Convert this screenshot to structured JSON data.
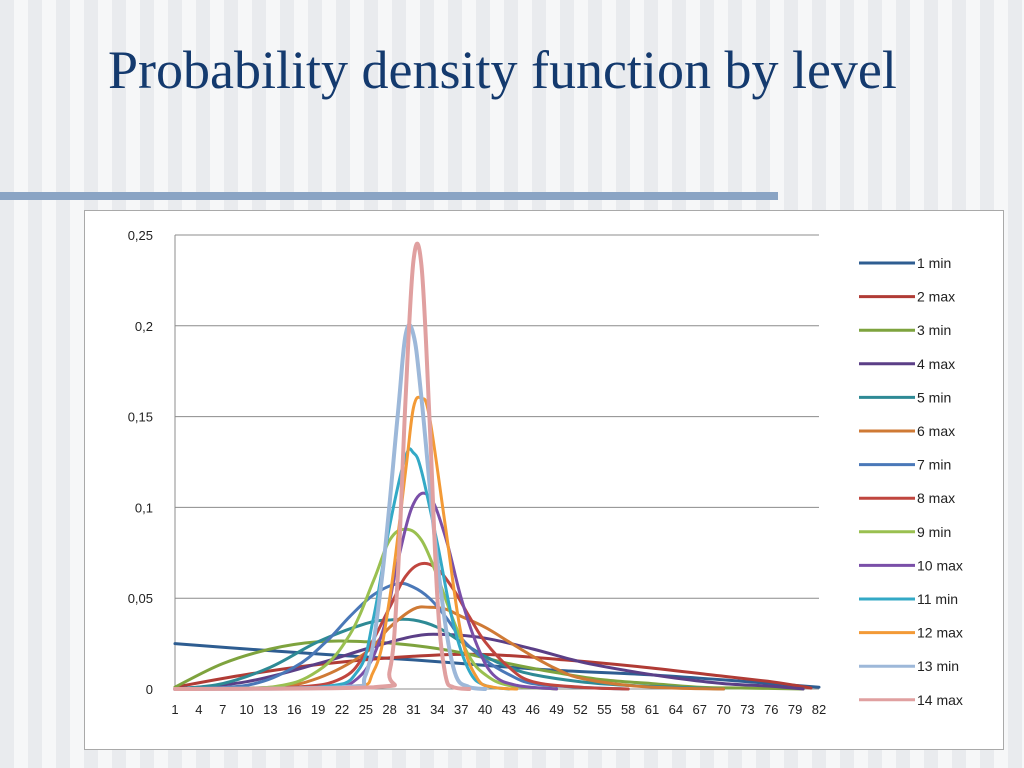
{
  "slide": {
    "title": "Probability density function by level"
  },
  "chart_data": {
    "type": "line",
    "title": "",
    "xlabel": "",
    "ylabel": "",
    "ylim": [
      0,
      0.25
    ],
    "yticks": [
      "0",
      "0,05",
      "0,1",
      "0,15",
      "0,2",
      "0,25"
    ],
    "ytick_values": [
      0,
      0.05,
      0.1,
      0.15,
      0.2,
      0.25
    ],
    "xlim": [
      1,
      82
    ],
    "xticks": [
      1,
      4,
      7,
      10,
      13,
      16,
      19,
      22,
      25,
      28,
      31,
      34,
      37,
      40,
      43,
      46,
      49,
      52,
      55,
      58,
      61,
      64,
      67,
      70,
      73,
      76,
      79,
      82
    ],
    "grid": "horizontal",
    "legend": "right",
    "series": [
      {
        "name": "1 min",
        "color": "#2e5d91",
        "width": 3,
        "points": [
          [
            1,
            0.025
          ],
          [
            10,
            0.022
          ],
          [
            20,
            0.019
          ],
          [
            31,
            0.016
          ],
          [
            40,
            0.013
          ],
          [
            50,
            0.01
          ],
          [
            60,
            0.008
          ],
          [
            70,
            0.005
          ],
          [
            79,
            0.002
          ],
          [
            82,
            0.001
          ]
        ]
      },
      {
        "name": "2 max",
        "color": "#b03b35",
        "width": 3,
        "points": [
          [
            1,
            0.001
          ],
          [
            10,
            0.008
          ],
          [
            20,
            0.014
          ],
          [
            31,
            0.018
          ],
          [
            40,
            0.019
          ],
          [
            50,
            0.016
          ],
          [
            60,
            0.012
          ],
          [
            70,
            0.007
          ],
          [
            76,
            0.004
          ],
          [
            79,
            0.002
          ],
          [
            81,
            0.0005
          ]
        ]
      },
      {
        "name": "3 min",
        "color": "#7ea33e",
        "width": 3,
        "points": [
          [
            1,
            0.001
          ],
          [
            7,
            0.014
          ],
          [
            13,
            0.022
          ],
          [
            19,
            0.026
          ],
          [
            25,
            0.026
          ],
          [
            31,
            0.024
          ],
          [
            37,
            0.02
          ],
          [
            43,
            0.014
          ],
          [
            49,
            0.009
          ],
          [
            55,
            0.005
          ],
          [
            61,
            0.003
          ],
          [
            67,
            0.001
          ],
          [
            73,
            0.0005
          ],
          [
            80,
            0
          ]
        ]
      },
      {
        "name": "4 max",
        "color": "#5b3f87",
        "width": 3,
        "points": [
          [
            1,
            0
          ],
          [
            10,
            0.004
          ],
          [
            19,
            0.014
          ],
          [
            25,
            0.022
          ],
          [
            31,
            0.029
          ],
          [
            35,
            0.03
          ],
          [
            40,
            0.028
          ],
          [
            46,
            0.022
          ],
          [
            52,
            0.015
          ],
          [
            58,
            0.01
          ],
          [
            64,
            0.006
          ],
          [
            70,
            0.003
          ],
          [
            76,
            0.0015
          ],
          [
            80,
            0
          ]
        ]
      },
      {
        "name": "5 min",
        "color": "#2e8a95",
        "width": 3,
        "points": [
          [
            1,
            0
          ],
          [
            7,
            0.003
          ],
          [
            13,
            0.012
          ],
          [
            19,
            0.026
          ],
          [
            25,
            0.036
          ],
          [
            28,
            0.038
          ],
          [
            31,
            0.038
          ],
          [
            34,
            0.034
          ],
          [
            37,
            0.026
          ],
          [
            40,
            0.018
          ],
          [
            43,
            0.012
          ],
          [
            46,
            0.008
          ],
          [
            52,
            0.004
          ],
          [
            58,
            0.002
          ],
          [
            64,
            0.001
          ],
          [
            70,
            0
          ]
        ]
      },
      {
        "name": "6 max",
        "color": "#cf7a35",
        "width": 3,
        "points": [
          [
            1,
            0
          ],
          [
            13,
            0.001
          ],
          [
            19,
            0.006
          ],
          [
            25,
            0.02
          ],
          [
            28,
            0.034
          ],
          [
            31,
            0.044
          ],
          [
            33,
            0.045
          ],
          [
            35,
            0.044
          ],
          [
            37,
            0.04
          ],
          [
            40,
            0.034
          ],
          [
            43,
            0.026
          ],
          [
            46,
            0.018
          ],
          [
            49,
            0.011
          ],
          [
            52,
            0.006
          ],
          [
            58,
            0.002
          ],
          [
            64,
            0.0005
          ],
          [
            70,
            0
          ]
        ]
      },
      {
        "name": "7 min",
        "color": "#4a78b8",
        "width": 3,
        "points": [
          [
            1,
            0
          ],
          [
            10,
            0.002
          ],
          [
            16,
            0.012
          ],
          [
            20,
            0.026
          ],
          [
            23,
            0.04
          ],
          [
            26,
            0.052
          ],
          [
            29,
            0.058
          ],
          [
            31,
            0.056
          ],
          [
            33,
            0.05
          ],
          [
            35,
            0.04
          ],
          [
            37,
            0.028
          ],
          [
            40,
            0.016
          ],
          [
            43,
            0.008
          ],
          [
            46,
            0.003
          ],
          [
            52,
            0.001
          ],
          [
            58,
            0
          ]
        ]
      },
      {
        "name": "8 max",
        "color": "#c0463f",
        "width": 3,
        "points": [
          [
            1,
            0
          ],
          [
            16,
            0.001
          ],
          [
            22,
            0.006
          ],
          [
            25,
            0.02
          ],
          [
            28,
            0.045
          ],
          [
            30,
            0.062
          ],
          [
            32,
            0.069
          ],
          [
            34,
            0.066
          ],
          [
            36,
            0.055
          ],
          [
            38,
            0.04
          ],
          [
            40,
            0.026
          ],
          [
            43,
            0.012
          ],
          [
            46,
            0.004
          ],
          [
            52,
            0.001
          ],
          [
            58,
            0
          ]
        ]
      },
      {
        "name": "9 min",
        "color": "#9ac050",
        "width": 3,
        "points": [
          [
            1,
            0
          ],
          [
            13,
            0.001
          ],
          [
            19,
            0.01
          ],
          [
            23,
            0.03
          ],
          [
            26,
            0.06
          ],
          [
            28,
            0.082
          ],
          [
            30,
            0.088
          ],
          [
            32,
            0.082
          ],
          [
            34,
            0.062
          ],
          [
            36,
            0.038
          ],
          [
            38,
            0.018
          ],
          [
            40,
            0.008
          ],
          [
            43,
            0.002
          ],
          [
            49,
            0
          ]
        ]
      },
      {
        "name": "10 max",
        "color": "#7a4fa8",
        "width": 3,
        "points": [
          [
            1,
            0
          ],
          [
            19,
            0.001
          ],
          [
            24,
            0.006
          ],
          [
            27,
            0.03
          ],
          [
            29,
            0.07
          ],
          [
            31,
            0.102
          ],
          [
            33,
            0.106
          ],
          [
            35,
            0.084
          ],
          [
            37,
            0.05
          ],
          [
            39,
            0.024
          ],
          [
            41,
            0.008
          ],
          [
            44,
            0.002
          ],
          [
            49,
            0
          ]
        ]
      },
      {
        "name": "11 min",
        "color": "#33a9c6",
        "width": 3,
        "points": [
          [
            1,
            0
          ],
          [
            19,
            0.001
          ],
          [
            24,
            0.01
          ],
          [
            26,
            0.04
          ],
          [
            28,
            0.09
          ],
          [
            30,
            0.128
          ],
          [
            31,
            0.13
          ],
          [
            32,
            0.12
          ],
          [
            34,
            0.08
          ],
          [
            36,
            0.036
          ],
          [
            38,
            0.01
          ],
          [
            40,
            0.002
          ],
          [
            43,
            0
          ]
        ]
      },
      {
        "name": "12 max",
        "color": "#f39a36",
        "width": 3,
        "points": [
          [
            1,
            0
          ],
          [
            22,
            0.001
          ],
          [
            26,
            0.01
          ],
          [
            28,
            0.05
          ],
          [
            30,
            0.12
          ],
          [
            31,
            0.155
          ],
          [
            32,
            0.16
          ],
          [
            33,
            0.15
          ],
          [
            35,
            0.09
          ],
          [
            37,
            0.03
          ],
          [
            39,
            0.006
          ],
          [
            41,
            0.001
          ],
          [
            44,
            0
          ]
        ]
      },
      {
        "name": "13 min",
        "color": "#9db8d9",
        "width": 4,
        "points": [
          [
            1,
            0
          ],
          [
            22,
            0.001
          ],
          [
            25,
            0.008
          ],
          [
            27,
            0.06
          ],
          [
            29,
            0.15
          ],
          [
            30,
            0.195
          ],
          [
            31,
            0.195
          ],
          [
            32,
            0.16
          ],
          [
            34,
            0.07
          ],
          [
            36,
            0.012
          ],
          [
            38,
            0.001
          ],
          [
            40,
            0
          ]
        ]
      },
      {
        "name": "14 max",
        "color": "#e0a0a0",
        "width": 4,
        "points": [
          [
            1,
            0
          ],
          [
            26,
            0.001
          ],
          [
            28,
            0.01
          ],
          [
            29,
            0.06
          ],
          [
            30,
            0.16
          ],
          [
            31,
            0.236
          ],
          [
            32,
            0.233
          ],
          [
            33,
            0.15
          ],
          [
            34,
            0.05
          ],
          [
            35,
            0.008
          ],
          [
            36,
            0.001
          ],
          [
            38,
            0
          ]
        ]
      }
    ]
  }
}
